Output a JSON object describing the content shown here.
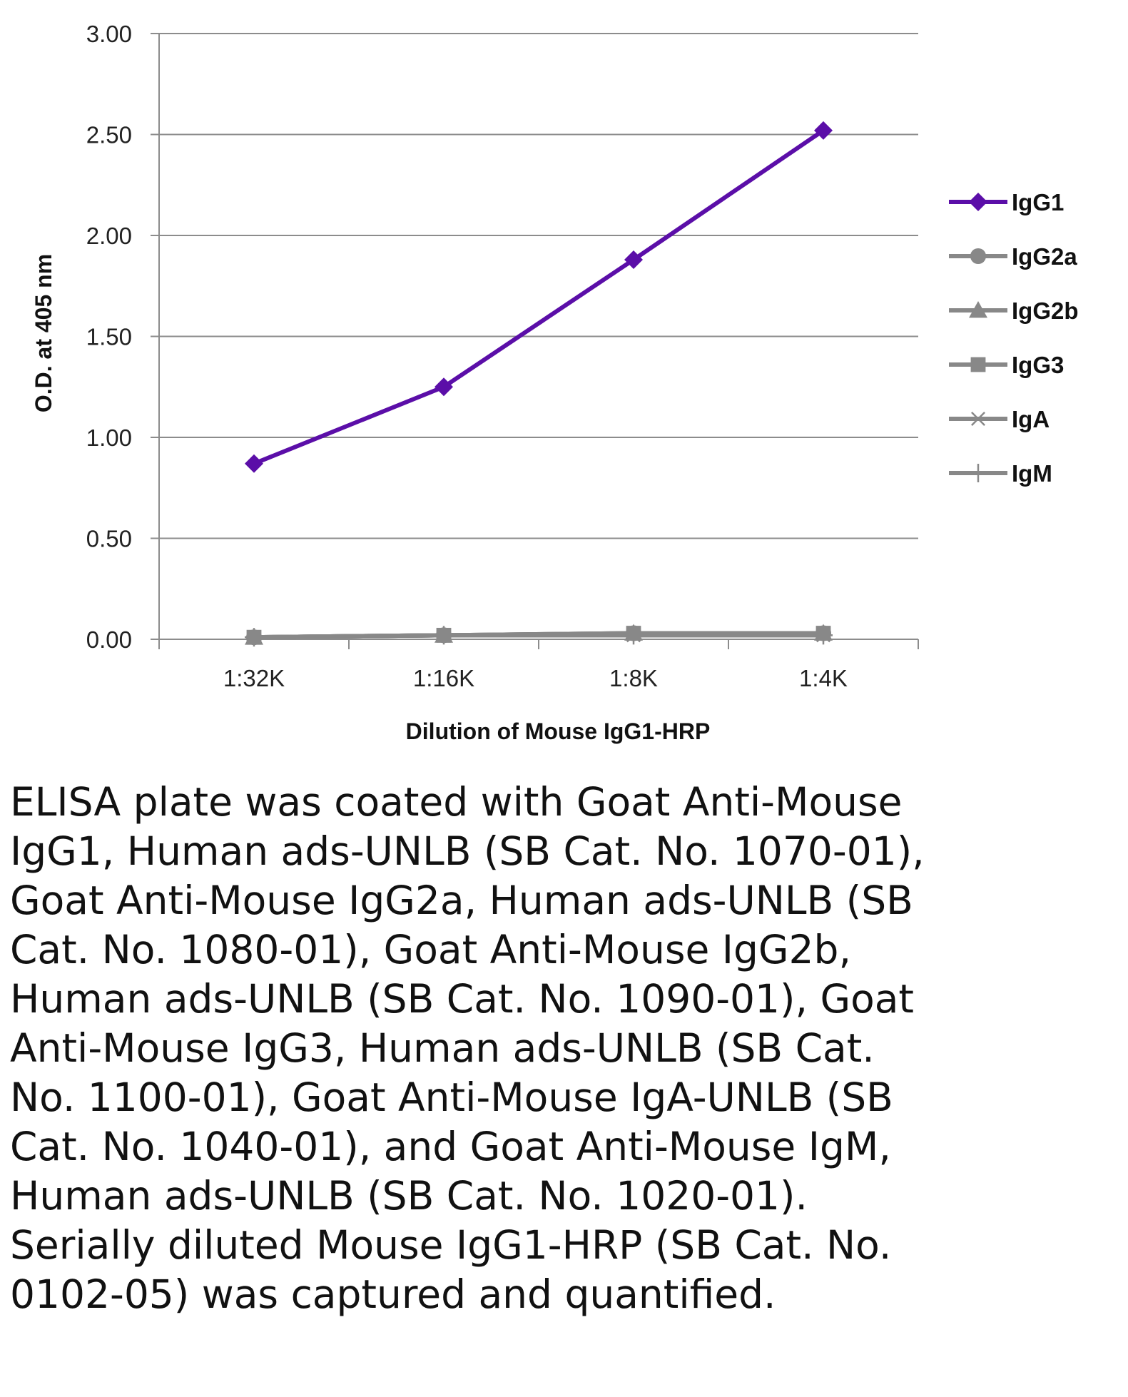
{
  "chart_data": {
    "type": "line",
    "title": "",
    "xlabel": "Dilution of Mouse IgG1-HRP",
    "ylabel": "O.D. at 405 nm",
    "categories": [
      "1:32K",
      "1:16K",
      "1:8K",
      "1:4K"
    ],
    "ylim": [
      0,
      3
    ],
    "y_ticks": [
      "0.00",
      "0.50",
      "1.00",
      "1.50",
      "2.00",
      "2.50",
      "3.00"
    ],
    "grid": true,
    "legend_position": "right",
    "series": [
      {
        "name": "IgG1",
        "values": [
          0.87,
          1.25,
          1.88,
          2.52
        ],
        "color": "#5b0ea8",
        "marker": "diamond"
      },
      {
        "name": "IgG2a",
        "values": [
          0.01,
          0.02,
          0.03,
          0.03
        ],
        "color": "#888888",
        "marker": "circle"
      },
      {
        "name": "IgG2b",
        "values": [
          0.01,
          0.02,
          0.03,
          0.03
        ],
        "color": "#888888",
        "marker": "triangle"
      },
      {
        "name": "IgG3",
        "values": [
          0.01,
          0.02,
          0.03,
          0.03
        ],
        "color": "#888888",
        "marker": "square"
      },
      {
        "name": "IgA",
        "values": [
          0.01,
          0.02,
          0.02,
          0.02
        ],
        "color": "#888888",
        "marker": "asterisk"
      },
      {
        "name": "IgM",
        "values": [
          0.01,
          0.02,
          0.02,
          0.02
        ],
        "color": "#888888",
        "marker": "plus"
      }
    ]
  },
  "caption": "ELISA plate was coated with Goat Anti-Mouse IgG1, Human ads-UNLB (SB Cat. No. 1070-01), Goat Anti-Mouse IgG2a, Human ads-UNLB (SB Cat. No. 1080-01), Goat Anti-Mouse IgG2b, Human ads-UNLB (SB Cat. No. 1090-01), Goat Anti-Mouse IgG3, Human ads-UNLB (SB Cat. No. 1100-01), Goat Anti-Mouse IgA-UNLB (SB Cat. No. 1040-01), and Goat Anti-Mouse IgM, Human ads-UNLB (SB Cat. No. 1020-01).  Serially diluted Mouse IgG1-HRP (SB Cat. No. 0102-05) was captured and quantified."
}
